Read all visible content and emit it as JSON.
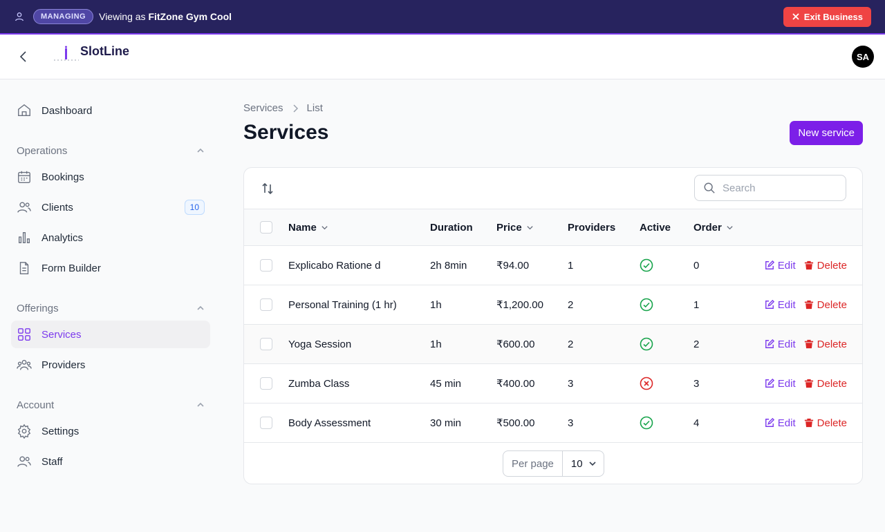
{
  "banner": {
    "badge": "MANAGING",
    "viewing": "Viewing as",
    "business": "FitZone Gym Cool",
    "exit": "Exit Business"
  },
  "header": {
    "brand": "SlotLine",
    "avatar": "SA"
  },
  "sidebar": {
    "top": [
      {
        "label": "Dashboard"
      }
    ],
    "groups": [
      {
        "title": "Operations",
        "items": [
          {
            "label": "Bookings"
          },
          {
            "label": "Clients",
            "badge": "10"
          },
          {
            "label": "Analytics"
          },
          {
            "label": "Form Builder"
          }
        ]
      },
      {
        "title": "Offerings",
        "items": [
          {
            "label": "Services",
            "active": true
          },
          {
            "label": "Providers"
          }
        ]
      },
      {
        "title": "Account",
        "items": [
          {
            "label": "Settings"
          },
          {
            "label": "Staff"
          }
        ]
      }
    ]
  },
  "breadcrumb": [
    "Services",
    "List"
  ],
  "title": "Services",
  "new_button": "New service",
  "table": {
    "search": "Search",
    "columns": [
      {
        "label": "Name",
        "sortable": true
      },
      {
        "label": "Duration"
      },
      {
        "label": "Price",
        "sortable": true
      },
      {
        "label": "Providers"
      },
      {
        "label": "Active"
      },
      {
        "label": "Order",
        "sortable": true
      }
    ],
    "rows": [
      {
        "name": "Explicabo Ratione d",
        "duration": "2h 8min",
        "price": "₹94.00",
        "providers": 1,
        "active": true,
        "order": 0
      },
      {
        "name": "Personal Training (1 hr)",
        "duration": "1h",
        "price": "₹1,200.00",
        "providers": 2,
        "active": true,
        "order": 1
      },
      {
        "name": "Yoga Session",
        "duration": "1h",
        "price": "₹600.00",
        "providers": 2,
        "active": true,
        "order": 2
      },
      {
        "name": "Zumba Class",
        "duration": "45 min",
        "price": "₹400.00",
        "providers": 3,
        "active": false,
        "order": 3
      },
      {
        "name": "Body Assessment",
        "duration": "30 min",
        "price": "₹500.00",
        "providers": 3,
        "active": true,
        "order": 4
      }
    ],
    "actions": {
      "edit": "Edit",
      "delete": "Delete"
    },
    "per_page_label": "Per page",
    "per_page": 10
  }
}
